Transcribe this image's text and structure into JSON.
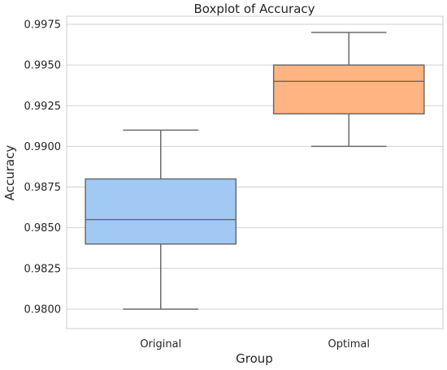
{
  "chart_data": {
    "type": "boxplot",
    "title": "Boxplot of Accuracy",
    "xlabel": "Group",
    "ylabel": "Accuracy",
    "ylim": [
      0.9788,
      0.998
    ],
    "grid": true,
    "y_ticks": [
      "0.9800",
      "0.9825",
      "0.9850",
      "0.9875",
      "0.9900",
      "0.9925",
      "0.9950",
      "0.9975"
    ],
    "categories": [
      "Original",
      "Optimal"
    ],
    "boxes": [
      {
        "name": "Original",
        "color": "#a1c9f4",
        "whisker_low": 0.98,
        "q1": 0.984,
        "median": 0.9855,
        "q3": 0.988,
        "whisker_high": 0.991
      },
      {
        "name": "Optimal",
        "color": "#ffb482",
        "whisker_low": 0.99,
        "q1": 0.992,
        "median": 0.994,
        "q3": 0.995,
        "whisker_high": 0.997
      }
    ]
  }
}
